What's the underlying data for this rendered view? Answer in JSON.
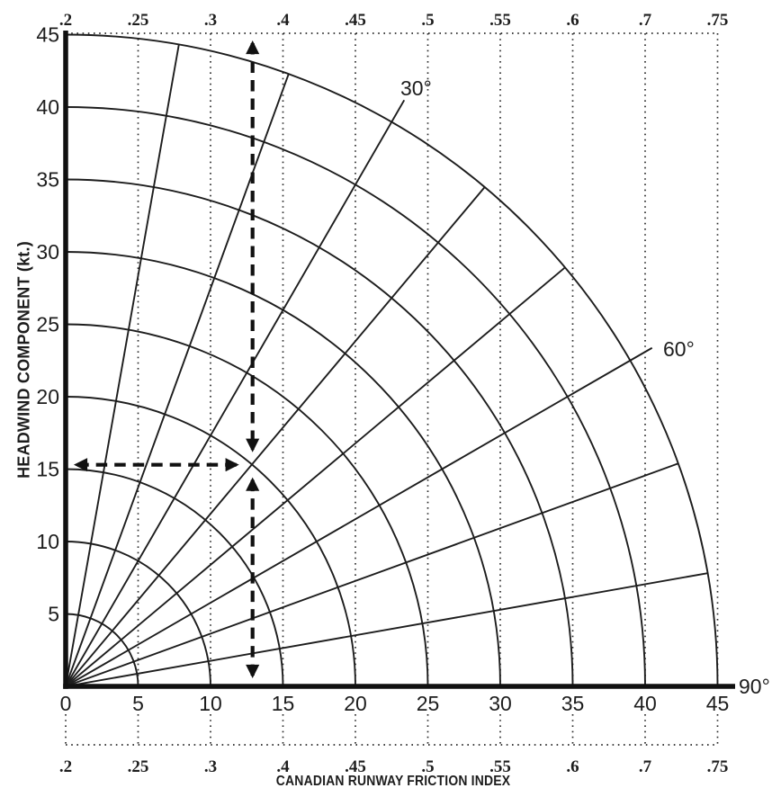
{
  "page": {
    "background": "#ffffff",
    "ink": "#1d1d1d"
  },
  "chart_data": {
    "type": "nomograph",
    "variant": "quarter_polar_wind_component_chart",
    "title": "",
    "x_axis": {
      "title": "CANADIAN RUNWAY FRICTION INDEX",
      "crosswind_ticks_kt": [
        0,
        5,
        10,
        15,
        20,
        25,
        30,
        35,
        40,
        45
      ],
      "range_kt": [
        0,
        45
      ]
    },
    "y_axis": {
      "title": "HEADWIND COMPONENT (kt.)",
      "ticks_kt": [
        45,
        40,
        35,
        30,
        25,
        20,
        15,
        10,
        5
      ],
      "range_kt": [
        0,
        45
      ]
    },
    "crfi_scale": {
      "tick_labels": [
        ".2",
        ".25",
        ".3",
        ".4",
        ".45",
        ".5",
        ".55",
        ".6",
        ".7",
        ".75"
      ],
      "aligned_with_crosswind_ticks_kt": [
        0,
        5,
        10,
        15,
        20,
        25,
        30,
        35,
        40,
        45
      ],
      "shown_on": [
        "top",
        "bottom"
      ]
    },
    "wind_speed_arcs_kt": [
      5,
      10,
      15,
      20,
      25,
      30,
      35,
      40,
      45
    ],
    "wind_angle_radials_deg": [
      10,
      20,
      30,
      40,
      50,
      60,
      70,
      80
    ],
    "wind_angle_labels": [
      {
        "label": "30°",
        "deg": 30
      },
      {
        "label": "60°",
        "deg": 60
      },
      {
        "label": "90°",
        "deg": 90
      }
    ],
    "example_arrows": {
      "style": "dashed, double-headed, black",
      "crosswind_kt": 12.9,
      "headwind_kt": 15.3,
      "marks": "intersection of 20-kt wind-speed arc with 40° wind-angle radial"
    },
    "grid": {
      "vertical_dotted_guides": true,
      "horizontal_gridlines": false
    },
    "legend": null
  }
}
